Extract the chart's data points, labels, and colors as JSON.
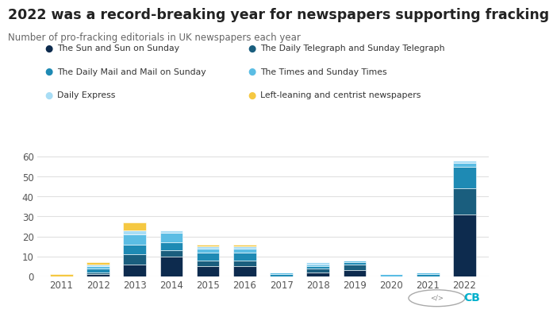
{
  "title": "2022 was a record-breaking year for newspapers supporting fracking",
  "subtitle": "Number of pro-fracking editorials in UK newspapers each year",
  "years": [
    2011,
    2012,
    2013,
    2014,
    2015,
    2016,
    2017,
    2018,
    2019,
    2020,
    2021,
    2022
  ],
  "series": [
    {
      "name": "The Sun and Sun on Sunday",
      "color": "#0d2b4e",
      "values": [
        0,
        1,
        6,
        10,
        5,
        5,
        0,
        2,
        3,
        0,
        0,
        31
      ]
    },
    {
      "name": "The Daily Telegraph and Sunday Telegraph",
      "color": "#1a5e7e",
      "values": [
        0,
        1,
        5,
        3,
        3,
        3,
        0,
        2,
        3,
        0,
        0,
        13
      ]
    },
    {
      "name": "The Daily Mail and Mail on Sunday",
      "color": "#1e8ab4",
      "values": [
        0,
        2,
        5,
        4,
        4,
        4,
        1,
        1,
        1,
        0,
        1,
        11
      ]
    },
    {
      "name": "The Times and Sunday Times",
      "color": "#5bbde4",
      "values": [
        0,
        1,
        5,
        5,
        2,
        2,
        1,
        1,
        1,
        1,
        1,
        2
      ]
    },
    {
      "name": "Daily Express",
      "color": "#a8ddf5",
      "values": [
        0,
        1,
        2,
        1,
        1,
        1,
        0,
        1,
        0,
        0,
        0,
        1
      ]
    },
    {
      "name": "Left-leaning and centrist newspapers",
      "color": "#f5c842",
      "values": [
        1,
        1,
        4,
        0,
        1,
        1,
        0,
        0,
        0,
        0,
        0,
        0
      ]
    }
  ],
  "ylim": [
    0,
    65
  ],
  "yticks": [
    0,
    10,
    20,
    30,
    40,
    50,
    60
  ],
  "background_color": "#ffffff",
  "grid_color": "#e0e0e0",
  "title_fontsize": 12.5,
  "subtitle_fontsize": 8.5,
  "tick_fontsize": 8.5,
  "legend_fontsize": 7.8,
  "legend_col1": [
    "The Sun and Sun on Sunday",
    "The Daily Mail and Mail on Sunday",
    "Daily Express"
  ],
  "legend_col2": [
    "The Daily Telegraph and Sunday Telegraph",
    "The Times and Sunday Times",
    "Left-leaning and centrist newspapers"
  ]
}
